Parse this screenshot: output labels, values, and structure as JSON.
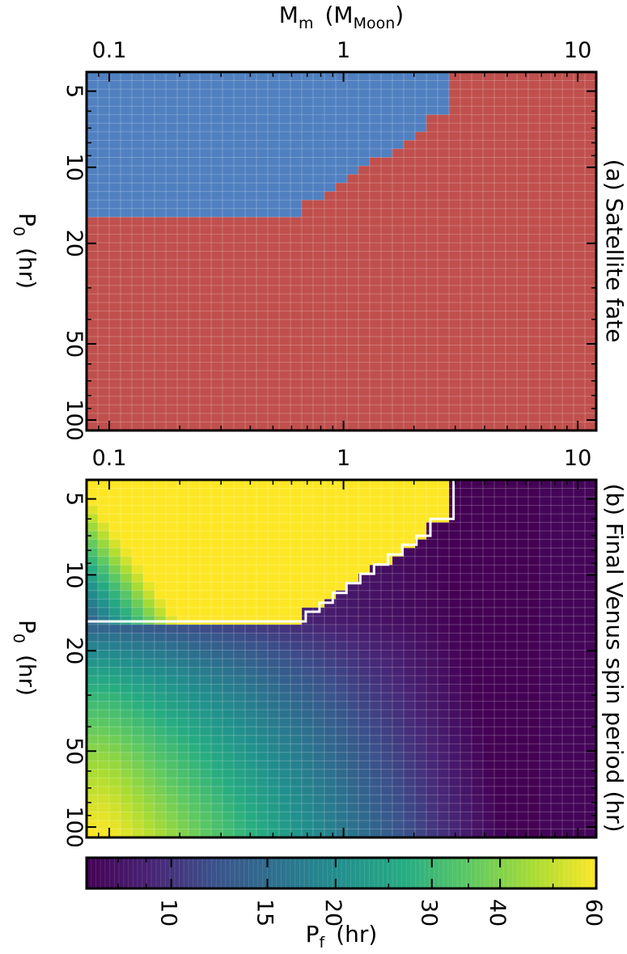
{
  "chart_data": [
    {
      "panel": "a",
      "type": "heatmap",
      "title": "(a) Satellite fate",
      "xlabel_main": "M",
      "xlabel_sub": "m",
      "xlabel_unit_open": "(M",
      "xlabel_unit_sub": "Moon",
      "xlabel_unit_close": ")",
      "ylabel_main": "P",
      "ylabel_sub": "0",
      "ylabel_unit": "(hr)",
      "xscale": "log",
      "yscale": "log",
      "xlim": [
        0.08,
        12
      ],
      "ylim": [
        4.2,
        110
      ],
      "y_inverted": true,
      "x_tick_labels": [
        "0.1",
        "1",
        "10"
      ],
      "y_tick_labels": [
        "5",
        "10",
        "20",
        "50",
        "100"
      ],
      "categories": [
        "satellite survives (blue)",
        "satellite lost (red)"
      ],
      "colors": {
        "survive": "#5080c0",
        "lost": "#c0504d"
      },
      "boundary_Mm": [
        0.08,
        0.69,
        0.69,
        0.79,
        0.79,
        0.9,
        0.9,
        1.03,
        1.03,
        1.18,
        1.18,
        1.35,
        1.35,
        1.55,
        1.55,
        1.78,
        1.78,
        2.05,
        2.05,
        2.35,
        2.35,
        2.95,
        2.95
      ],
      "boundary_P0": [
        15.3,
        15.3,
        14.0,
        14.0,
        12.9,
        12.9,
        11.8,
        11.8,
        10.8,
        10.8,
        9.9,
        9.9,
        9.1,
        9.1,
        8.3,
        8.3,
        7.6,
        7.6,
        7.0,
        7.0,
        6.0,
        6.0,
        4.2
      ]
    },
    {
      "panel": "b",
      "type": "heatmap",
      "title": "(b) Final Venus spin period (hr)",
      "ylabel_main": "P",
      "ylabel_sub": "0",
      "ylabel_unit": "(hr)",
      "xscale": "log",
      "yscale": "log",
      "xlim": [
        0.08,
        12
      ],
      "ylim": [
        4.2,
        110
      ],
      "y_inverted": true,
      "x_tick_labels": [
        "0.1",
        "1",
        "10"
      ],
      "y_tick_labels": [
        "5",
        "10",
        "20",
        "50",
        "100"
      ],
      "value_label": "P_f (hr)",
      "colorscale": "viridis (log)",
      "color_range": [
        7,
        60
      ],
      "samples": [
        {
          "Mm": 0.09,
          "P0": 5,
          "Pf": 8
        },
        {
          "Mm": 0.09,
          "P0": 10,
          "Pf": 14
        },
        {
          "Mm": 0.09,
          "P0": 14,
          "Pf": 20
        },
        {
          "Mm": 0.3,
          "P0": 6,
          "Pf": 10
        },
        {
          "Mm": 0.3,
          "P0": 10,
          "Pf": 20
        },
        {
          "Mm": 0.5,
          "P0": 12,
          "Pf": 60
        },
        {
          "Mm": 1.0,
          "P0": 8,
          "Pf": 60
        },
        {
          "Mm": 1.0,
          "P0": 14,
          "Pf": 14
        },
        {
          "Mm": 3.5,
          "P0": 8,
          "Pf": 8
        },
        {
          "Mm": 0.09,
          "P0": 20,
          "Pf": 18
        },
        {
          "Mm": 0.09,
          "P0": 35,
          "Pf": 30
        },
        {
          "Mm": 0.09,
          "P0": 60,
          "Pf": 50
        },
        {
          "Mm": 0.09,
          "P0": 100,
          "Pf": 60
        },
        {
          "Mm": 0.5,
          "P0": 60,
          "Pf": 40
        },
        {
          "Mm": 1.0,
          "P0": 60,
          "Pf": 30
        },
        {
          "Mm": 1.0,
          "P0": 100,
          "Pf": 24
        },
        {
          "Mm": 2.0,
          "P0": 60,
          "Pf": 17
        },
        {
          "Mm": 3.0,
          "P0": 60,
          "Pf": 12
        },
        {
          "Mm": 6.0,
          "P0": 60,
          "Pf": 8
        },
        {
          "Mm": 10.0,
          "P0": 60,
          "Pf": 7
        }
      ]
    }
  ],
  "colorbar": {
    "label_main": "P",
    "label_sub": "f",
    "label_unit": "(hr)",
    "min": 7,
    "max": 60,
    "scale": "log",
    "tick_labels": [
      "10",
      "15",
      "20",
      "30",
      "40",
      "60"
    ],
    "tick_values": [
      10,
      15,
      20,
      30,
      40,
      60
    ]
  },
  "colors": {
    "survive": "#5080c0",
    "lost": "#c0504d",
    "boundary_line": "#ffffff",
    "grid": "#ffffff"
  }
}
